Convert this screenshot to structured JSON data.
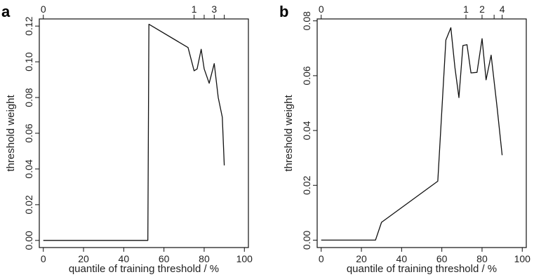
{
  "chart_data": [
    {
      "panel": "a",
      "type": "line",
      "xlabel": "quantile of training threshold / %",
      "ylabel": "threshold weight",
      "xlim": [
        -2,
        102
      ],
      "ylim": [
        -0.004,
        0.124
      ],
      "xticks": [
        0,
        20,
        40,
        60,
        80,
        100
      ],
      "xtick_labels": [
        "0",
        "20",
        "40",
        "60",
        "80",
        "100"
      ],
      "yticks": [
        0.0,
        0.02,
        0.04,
        0.06,
        0.08,
        0.1,
        0.12
      ],
      "ytick_labels": [
        "0.00",
        "0.02",
        "0.04",
        "0.06",
        "0.08",
        "0.10",
        "0.12"
      ],
      "top_ticks": [
        0,
        75,
        80,
        85,
        90
      ],
      "top_tick_labels": [
        "0",
        "1",
        "",
        "3",
        ""
      ],
      "grid": false,
      "series": [
        {
          "x": [
            0,
            52,
            52.5,
            72,
            75,
            76.5,
            78.5,
            80,
            82.5,
            85,
            87,
            89,
            90
          ],
          "y": [
            0.0,
            0.0,
            0.121,
            0.108,
            0.095,
            0.096,
            0.107,
            0.096,
            0.088,
            0.099,
            0.08,
            0.069,
            0.042
          ]
        }
      ]
    },
    {
      "panel": "b",
      "type": "line",
      "xlabel": "quantile of training threshold / %",
      "ylabel": "threshold weight",
      "xlim": [
        -2,
        102
      ],
      "ylim": [
        -0.0027,
        0.0807
      ],
      "xticks": [
        0,
        20,
        40,
        60,
        80,
        100
      ],
      "xtick_labels": [
        "0",
        "20",
        "40",
        "60",
        "80",
        "100"
      ],
      "yticks": [
        0.0,
        0.02,
        0.04,
        0.06,
        0.08
      ],
      "ytick_labels": [
        "0.00",
        "0.02",
        "0.04",
        "0.06",
        "0.08"
      ],
      "top_ticks": [
        0,
        72,
        80,
        86,
        90
      ],
      "top_tick_labels": [
        "0",
        "1",
        "2",
        "",
        "4"
      ],
      "grid": false,
      "series": [
        {
          "x": [
            0,
            27,
            30,
            58,
            62,
            64.5,
            66.5,
            68.5,
            70.5,
            72.5,
            74.5,
            77.5,
            80,
            82,
            84.5,
            87.5,
            90
          ],
          "y": [
            0.0,
            0.0,
            0.0065,
            0.0215,
            0.073,
            0.0775,
            0.063,
            0.052,
            0.071,
            0.0713,
            0.061,
            0.0612,
            0.0735,
            0.0585,
            0.0675,
            0.0482,
            0.031
          ]
        }
      ]
    }
  ]
}
